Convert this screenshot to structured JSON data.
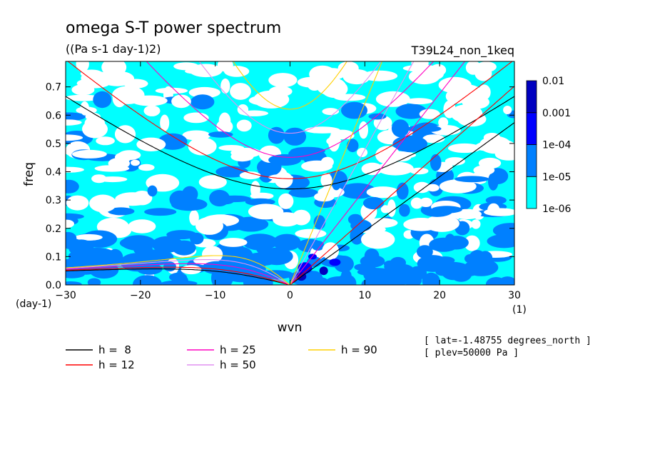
{
  "chart_data": {
    "type": "heatmap",
    "title": "omega S-T power spectrum",
    "subtitle": "((Pa s-1 day-1)2)",
    "experiment": "T39L24_non_1keq",
    "xlabel": "wvn",
    "xunit": "(1)",
    "ylabel": "freq",
    "yunit": "(day-1)",
    "xlim": [
      -30,
      30
    ],
    "ylim": [
      0,
      0.79
    ],
    "xticks": [
      -30,
      -20,
      -10,
      0,
      10,
      20,
      30
    ],
    "yticks": [
      0.0,
      0.1,
      0.2,
      0.3,
      0.4,
      0.5,
      0.6,
      0.7
    ],
    "colorbar": {
      "levels": [
        "1e-06",
        "1e-05",
        "1e-04",
        "0.001",
        "0.01"
      ],
      "colors": [
        "#00ffff",
        "#0080ff",
        "#0000ff",
        "#0000c0",
        "#4000a0"
      ]
    },
    "series": [
      {
        "name": "h =  8",
        "h": 8,
        "color": "#000000"
      },
      {
        "name": "h = 12",
        "h": 12,
        "color": "#ff0000"
      },
      {
        "name": "h = 25",
        "h": 25,
        "color": "#ff00c0"
      },
      {
        "name": "h = 50",
        "h": 50,
        "color": "#e090f0"
      },
      {
        "name": "h = 90",
        "h": 90,
        "color": "#ffd000"
      }
    ],
    "info": [
      "[ lat=-1.48755 degrees_north ]",
      "[ plev=50000 Pa ]"
    ]
  }
}
